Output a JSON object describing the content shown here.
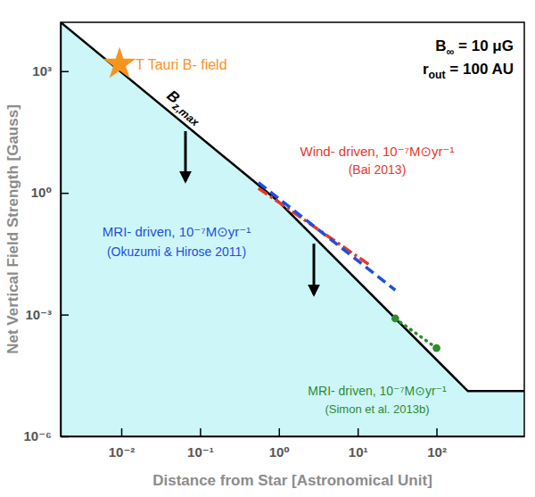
{
  "chart_data": {
    "type": "line",
    "log": true,
    "grid": false,
    "xlabel": "Distance from Star  [Astronomical Unit]",
    "ylabel": "Net Vertical Field Strength  [Gauss]",
    "xlim": [
      0.0017,
      1300
    ],
    "ylim": [
      1e-06,
      16000
    ],
    "xticks": [
      {
        "value": 0.01,
        "label": "10⁻²"
      },
      {
        "value": 0.1,
        "label": "10⁻¹"
      },
      {
        "value": 1,
        "label": "10⁰"
      },
      {
        "value": 10,
        "label": "10¹"
      },
      {
        "value": 100,
        "label": "10²"
      }
    ],
    "yticks": [
      {
        "value": 1e-06,
        "label": "10⁻⁶"
      },
      {
        "value": 0.001,
        "label": "10⁻³"
      },
      {
        "value": 1,
        "label": "10⁰"
      },
      {
        "value": 1000,
        "label": "10³"
      }
    ],
    "series": [
      {
        "name": "Bz,max",
        "type": "area",
        "color": "#000000",
        "line_style": "solid",
        "x": [
          0.0017,
          1,
          250,
          1300
        ],
        "values": [
          16000,
          0.6,
          1.3e-05,
          1.3e-05
        ]
      },
      {
        "name": "T Tauri B- field",
        "type": "scatter",
        "marker": "star",
        "color": "#f7941d",
        "x": [
          0.0095
        ],
        "values": [
          1500
        ]
      },
      {
        "name": "Wind- driven, 10⁻⁷M⊙yr⁻¹",
        "type": "line",
        "line_style": "dashdot",
        "color": "#e8372b",
        "x": [
          0.55,
          14
        ],
        "values": [
          1.3,
          0.017
        ]
      },
      {
        "name": "MRI- driven, 10⁻⁷M⊙yr⁻¹",
        "type": "line",
        "line_style": "dashed",
        "color": "#1f4fe0",
        "x": [
          0.55,
          30
        ],
        "values": [
          1.8,
          0.004
        ]
      },
      {
        "name": "MRI- driven, 10⁻⁷M⊙yr⁻¹",
        "type": "line",
        "line_style": "dotted",
        "marker": "circle",
        "color": "#2e8b2e",
        "x": [
          30,
          100
        ],
        "values": [
          0.0008,
          0.00015
        ]
      }
    ],
    "annotations": [
      "(Bai 2013)",
      "(Okuzumi & Hirose 2011)",
      "(Simon et al. 2013b)",
      "B∞ = 10 μG",
      "rout = 100 AU"
    ]
  }
}
